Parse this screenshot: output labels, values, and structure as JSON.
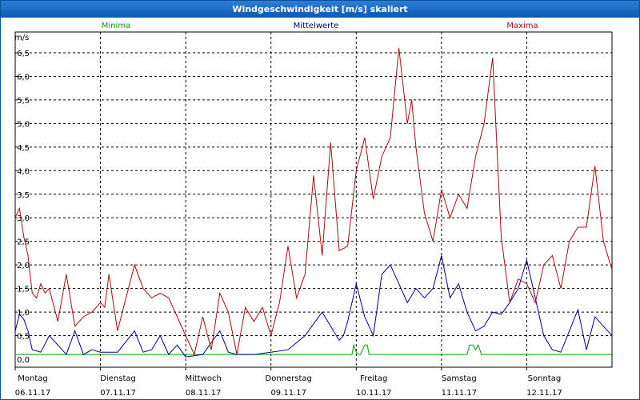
{
  "window": {
    "title": "Windgeschwindigkeit [m/s] skaliert"
  },
  "legend": {
    "minima": {
      "label": "Minima",
      "color": "#00a000"
    },
    "mittel": {
      "label": "Mittelwerte",
      "color": "#00008b"
    },
    "maxima": {
      "label": "Maxima",
      "color": "#a01010"
    }
  },
  "axis": {
    "unit": "m/s",
    "y_ticks": [
      "6,5",
      "6,0",
      "5,5",
      "5,0",
      "4,5",
      "4,0",
      "3,5",
      "3,0",
      "2,5",
      "2,0",
      "1,5",
      "1,0",
      "0,5",
      "0,0"
    ],
    "x_days": [
      {
        "day": "Montag",
        "date": "06.11.17"
      },
      {
        "day": "Dienstag",
        "date": "07.11.17"
      },
      {
        "day": "Mittwoch",
        "date": "08.11.17"
      },
      {
        "day": "Donnerstag",
        "date": "09.11.17"
      },
      {
        "day": "Freitag",
        "date": "10.11.17"
      },
      {
        "day": "Samstag",
        "date": "11.11.17"
      },
      {
        "day": "Sonntag",
        "date": "12.11.17"
      }
    ]
  },
  "chart_data": {
    "type": "line",
    "title": "Windgeschwindigkeit [m/s] skaliert",
    "ylabel": "m/s",
    "ylim": [
      0,
      7
    ],
    "xlim": [
      0,
      7
    ],
    "grid": true,
    "legend_placement": "top",
    "series": [
      {
        "name": "Minima",
        "color": "#00a000",
        "x": [
          0,
          3.95,
          3.97,
          4.0,
          4.03,
          4.05,
          4.1,
          4.13,
          4.15,
          4.2,
          5.3,
          5.33,
          5.37,
          5.4,
          5.43,
          5.47,
          7
        ],
        "y": [
          0.1,
          0.1,
          0.3,
          0.15,
          0.1,
          0.1,
          0.3,
          0.3,
          0.1,
          0.1,
          0.1,
          0.3,
          0.3,
          0.2,
          0.3,
          0.1,
          0.1
        ]
      },
      {
        "name": "Mittelwerte",
        "color": "#00008b",
        "x": [
          0,
          0.05,
          0.1,
          0.15,
          0.2,
          0.3,
          0.4,
          0.5,
          0.6,
          0.7,
          0.8,
          0.9,
          1.0,
          1.2,
          1.4,
          1.5,
          1.6,
          1.7,
          1.8,
          1.9,
          2.0,
          2.2,
          2.4,
          2.5,
          2.6,
          2.8,
          3.0,
          3.2,
          3.4,
          3.5,
          3.6,
          3.7,
          3.8,
          3.85,
          3.9,
          4.0,
          4.1,
          4.2,
          4.3,
          4.4,
          4.5,
          4.6,
          4.7,
          4.8,
          4.9,
          5.0,
          5.1,
          5.2,
          5.3,
          5.4,
          5.5,
          5.6,
          5.7,
          5.8,
          5.9,
          6.0,
          6.1,
          6.2,
          6.3,
          6.4,
          6.5,
          6.6,
          6.7,
          6.8,
          6.9,
          7.0
        ],
        "y": [
          0.6,
          0.95,
          0.85,
          0.6,
          0.2,
          0.15,
          0.5,
          0.3,
          0.1,
          0.6,
          0.1,
          0.2,
          0.15,
          0.15,
          0.6,
          0.15,
          0.2,
          0.5,
          0.1,
          0.3,
          0.05,
          0.1,
          0.6,
          0.15,
          0.1,
          0.1,
          0.15,
          0.2,
          0.5,
          0.75,
          1.0,
          0.7,
          0.4,
          0.5,
          0.8,
          1.6,
          0.9,
          0.5,
          1.8,
          2.0,
          1.6,
          1.2,
          1.5,
          1.3,
          1.5,
          2.2,
          1.3,
          1.6,
          1.0,
          0.6,
          0.7,
          1.0,
          0.95,
          1.2,
          1.5,
          2.1,
          1.3,
          0.5,
          0.2,
          0.15,
          0.6,
          1.05,
          0.2,
          0.9,
          0.7,
          0.5
        ]
      },
      {
        "name": "Maxima",
        "color": "#a01010",
        "x": [
          0,
          0.05,
          0.1,
          0.15,
          0.2,
          0.25,
          0.3,
          0.35,
          0.4,
          0.5,
          0.6,
          0.7,
          0.8,
          0.9,
          1.0,
          1.05,
          1.1,
          1.2,
          1.3,
          1.4,
          1.5,
          1.6,
          1.7,
          1.8,
          1.9,
          2.0,
          2.1,
          2.2,
          2.3,
          2.4,
          2.5,
          2.6,
          2.7,
          2.8,
          2.9,
          3.0,
          3.1,
          3.2,
          3.3,
          3.4,
          3.5,
          3.6,
          3.7,
          3.8,
          3.9,
          4.0,
          4.1,
          4.2,
          4.3,
          4.4,
          4.5,
          4.6,
          4.65,
          4.7,
          4.8,
          4.9,
          5.0,
          5.1,
          5.2,
          5.3,
          5.4,
          5.5,
          5.6,
          5.7,
          5.8,
          5.9,
          6.0,
          6.1,
          6.2,
          6.3,
          6.4,
          6.5,
          6.6,
          6.7,
          6.8,
          6.9,
          7.0
        ],
        "y": [
          3.0,
          3.2,
          2.6,
          2.2,
          1.4,
          1.3,
          1.6,
          1.4,
          1.5,
          0.8,
          1.8,
          0.7,
          0.9,
          1.0,
          1.2,
          1.1,
          1.8,
          0.6,
          1.3,
          2.0,
          1.5,
          1.3,
          1.4,
          1.3,
          0.9,
          0.5,
          0.1,
          0.9,
          0.2,
          1.4,
          1.0,
          0.1,
          1.1,
          0.8,
          1.1,
          0.5,
          1.2,
          2.4,
          1.3,
          1.8,
          3.9,
          2.2,
          4.6,
          2.3,
          2.4,
          4.0,
          4.7,
          3.4,
          4.3,
          4.7,
          6.6,
          5.0,
          5.5,
          4.5,
          3.1,
          2.5,
          3.6,
          3.0,
          3.5,
          3.2,
          4.3,
          5.0,
          6.4,
          2.6,
          1.2,
          1.7,
          1.6,
          1.2,
          2.0,
          2.2,
          1.5,
          2.5,
          2.8,
          2.8,
          4.1,
          2.5,
          1.9
        ]
      }
    ]
  }
}
